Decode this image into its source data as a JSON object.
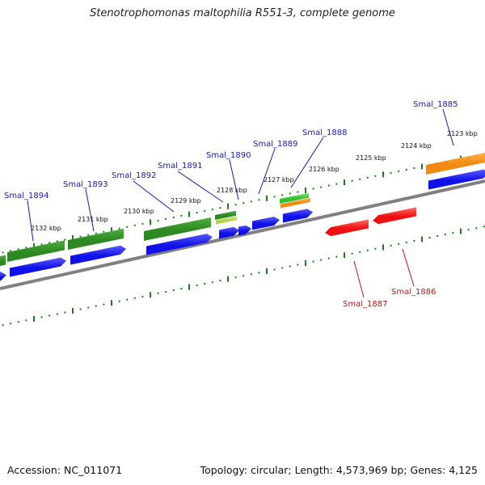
{
  "title": "Stenotrophomonas maltophilia R551-3, complete genome",
  "footer": {
    "accession": "Accession: NC_011071",
    "topology": "Topology: circular; Length: 4,573,969 bp; Genes: 4,125"
  },
  "colors": {
    "forward_cds": "#1010e8",
    "reverse_cds": "#ee1010",
    "green_feature": "#2d8a22",
    "orange_feature": "#f08a10",
    "light_green_feature": "#2fc12f",
    "yellow_green_feature": "#b4d24a",
    "backbone": "#808080",
    "ticks": "#1f7a1f",
    "fwd_label": "#1a1aa8",
    "rev_label": "#c81414"
  },
  "scale_labels": [
    "2123 kbp",
    "2124 kbp",
    "2125 kbp",
    "2126 kbp",
    "2127 kbp",
    "2128 kbp",
    "2129 kbp",
    "2130 kbp",
    "2131 kbp",
    "2132 kbp"
  ],
  "gene_labels_forward": [
    "Smal_1885",
    "Smal_1888",
    "Smal_1889",
    "Smal_1890",
    "Smal_1891",
    "Smal_1892",
    "Smal_1893",
    "Smal_1894"
  ],
  "gene_labels_reverse": [
    "Smal_1886",
    "Smal_1887"
  ]
}
